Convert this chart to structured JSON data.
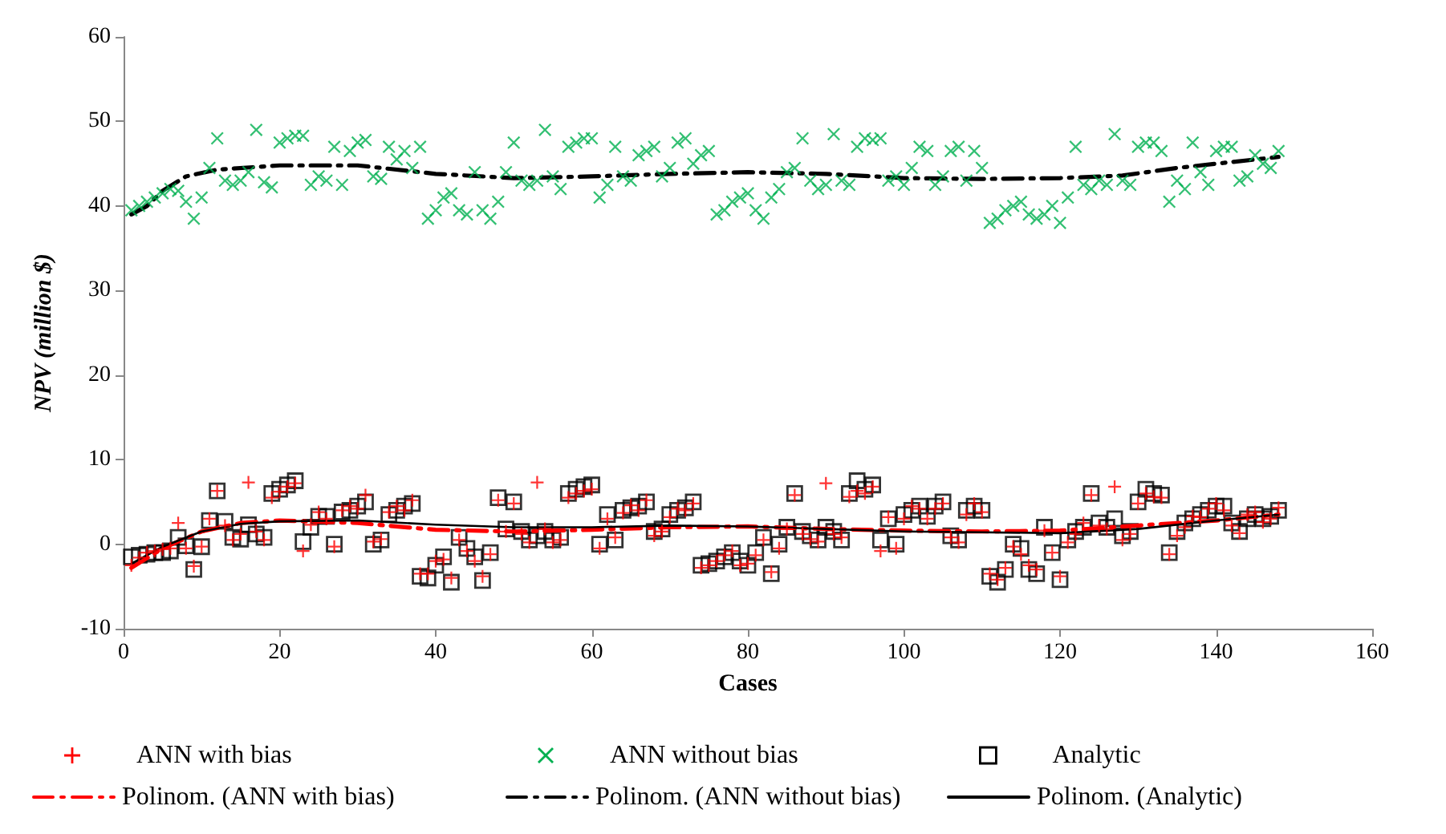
{
  "chart_data": {
    "type": "scatter",
    "xlabel": "Cases",
    "ylabel": "NPV (million $)",
    "xlim": [
      0,
      160
    ],
    "xticks": [
      0,
      20,
      40,
      60,
      80,
      100,
      120,
      140,
      160
    ],
    "ylim": [
      -10,
      60
    ],
    "yticks": [
      -10,
      0,
      10,
      20,
      30,
      40,
      50,
      60
    ],
    "grid": false,
    "legend": "bottom",
    "x": [
      1,
      2,
      3,
      4,
      5,
      6,
      7,
      8,
      9,
      10,
      11,
      12,
      13,
      14,
      15,
      16,
      17,
      18,
      19,
      20,
      21,
      22,
      23,
      24,
      25,
      26,
      27,
      28,
      29,
      30,
      31,
      32,
      33,
      34,
      35,
      36,
      37,
      38,
      39,
      40,
      41,
      42,
      43,
      44,
      45,
      46,
      47,
      48,
      49,
      50,
      51,
      52,
      53,
      54,
      55,
      56,
      57,
      58,
      59,
      60,
      61,
      62,
      63,
      64,
      65,
      66,
      67,
      68,
      69,
      70,
      71,
      72,
      73,
      74,
      75,
      76,
      77,
      78,
      79,
      80,
      81,
      82,
      83,
      84,
      85,
      86,
      87,
      88,
      89,
      90,
      91,
      92,
      93,
      94,
      95,
      96,
      97,
      98,
      99,
      100,
      101,
      102,
      103,
      104,
      105,
      106,
      107,
      108,
      109,
      110,
      111,
      112,
      113,
      114,
      115,
      116,
      117,
      118,
      119,
      120,
      121,
      122,
      123,
      124,
      125,
      126,
      127,
      128,
      129,
      130,
      131,
      132,
      133,
      134,
      135,
      136,
      137,
      138,
      139,
      140,
      141,
      142,
      143,
      144,
      145,
      146,
      147,
      148
    ],
    "series": [
      {
        "name": "ANN with bias",
        "marker": "cross",
        "color": "#ff0000",
        "values": [
          -2.5,
          -1.6,
          -1.0,
          -0.8,
          -0.6,
          -0.5,
          2.5,
          -0.5,
          -2.6,
          -0.3,
          3.0,
          6.3,
          2.2,
          0.5,
          1.2,
          7.3,
          1.5,
          0.5,
          5.5,
          6.2,
          6.8,
          7.2,
          -0.8,
          2.3,
          3.8,
          3.0,
          -0.3,
          4.0,
          4.5,
          4.2,
          5.8,
          0.3,
          0.6,
          3.8,
          4.5,
          4.0,
          5.2,
          -3.5,
          -3.5,
          -2.0,
          -1.8,
          -4.0,
          0.5,
          -0.8,
          -2.0,
          -3.8,
          -1.2,
          5.2,
          1.5,
          4.8,
          1.2,
          0.2,
          7.3,
          1.8,
          0.2,
          0.5,
          5.5,
          6.0,
          6.3,
          6.5,
          -0.5,
          3.0,
          0.8,
          3.7,
          4.6,
          4.0,
          5.2,
          1.0,
          1.5,
          3.2,
          4.2,
          4.0,
          4.8,
          -2.8,
          -2.5,
          -2.0,
          -1.3,
          -0.8,
          -2.5,
          -2.3,
          -1.3,
          0.5,
          -3.3,
          -0.5,
          1.8,
          5.8,
          1.2,
          0.6,
          0.3,
          7.2,
          1.2,
          0.8,
          5.6,
          6.3,
          6.0,
          6.8,
          -0.8,
          3.2,
          -0.5,
          3.0,
          4.5,
          4.2,
          3.0,
          4.2,
          4.8,
          0.8,
          0.2,
          3.5,
          4.8,
          3.8,
          -3.5,
          -4.2,
          -2.8,
          -0.3,
          -1.2,
          -2.5,
          -3.0,
          1.6,
          -1.0,
          -3.8,
          0.2,
          1.2,
          2.5,
          5.8,
          2.2,
          1.8,
          6.8,
          0.5,
          1.2,
          4.8,
          6.0,
          5.6,
          5.5,
          -1.2,
          1.0,
          2.0,
          3.3,
          3.2,
          4.2,
          4.8,
          4.0,
          2.2,
          1.3,
          3.5,
          3.8,
          2.6,
          3.0,
          4.3
        ]
      },
      {
        "name": "ANN without bias",
        "marker": "cross",
        "color": "#00b050",
        "values": [
          39.5,
          40,
          40.5,
          41,
          41.5,
          42,
          41.8,
          40.5,
          38.5,
          41,
          44.5,
          48,
          43,
          42.5,
          43,
          44,
          49,
          42.8,
          42.2,
          47.5,
          48,
          48.3,
          48.3,
          42.5,
          43.5,
          43,
          47,
          42.5,
          46.5,
          47.5,
          47.8,
          43.5,
          43.2,
          47,
          45.5,
          46.5,
          44.5,
          47,
          38.5,
          39.5,
          41,
          41.5,
          39.5,
          39,
          44,
          39.5,
          38.5,
          40.5,
          44,
          47.5,
          43,
          42.5,
          43,
          49,
          43.5,
          42,
          47,
          47.5,
          48,
          48,
          41,
          42.5,
          47,
          43.5,
          43,
          46,
          46.5,
          47,
          43.5,
          44.5,
          47.5,
          48,
          45,
          46,
          46.5,
          39,
          39.5,
          40.5,
          41,
          41.5,
          39.5,
          38.5,
          41,
          42,
          44,
          44.5,
          48,
          43,
          42,
          42.5,
          48.5,
          43,
          42.5,
          47,
          48,
          47.8,
          48,
          43,
          43.5,
          42.5,
          44.5,
          47,
          46.5,
          42.5,
          43.5,
          46.5,
          47,
          43,
          46.5,
          44.5,
          38,
          38.5,
          39.5,
          40,
          40.5,
          39,
          38.5,
          39,
          40,
          38,
          41,
          47,
          42.5,
          42,
          43,
          42.5,
          48.5,
          43,
          42.5,
          47,
          47.5,
          47.5,
          46.5,
          40.5,
          43,
          42,
          47.5,
          44,
          42.5,
          46.5,
          47,
          47,
          43,
          43.5,
          46,
          45,
          44.5,
          46.5
        ]
      },
      {
        "name": "Analytic",
        "marker": "square",
        "color": "#000000",
        "values": [
          -1.5,
          -1.3,
          -1.2,
          -1.0,
          -1.0,
          -0.8,
          0.8,
          -0.2,
          -3.0,
          -0.3,
          2.8,
          6.3,
          2.7,
          0.8,
          0.6,
          2.3,
          1.2,
          0.8,
          6.0,
          6.5,
          7.0,
          7.5,
          0.3,
          2.0,
          3.3,
          3.3,
          0.0,
          3.8,
          4.0,
          4.5,
          5.0,
          0.0,
          0.5,
          3.5,
          4.0,
          4.5,
          4.8,
          -3.8,
          -4.0,
          -2.5,
          -1.5,
          -4.5,
          0.8,
          -0.5,
          -1.5,
          -4.3,
          -1.0,
          5.5,
          1.8,
          5.0,
          1.5,
          0.5,
          1.0,
          1.5,
          0.5,
          0.8,
          6.0,
          6.5,
          6.8,
          7.0,
          0.0,
          3.5,
          0.5,
          4.0,
          4.3,
          4.5,
          5.0,
          1.5,
          1.8,
          3.5,
          4.0,
          4.3,
          5.0,
          -2.5,
          -2.3,
          -2.0,
          -1.5,
          -1.0,
          -2.0,
          -2.5,
          -1.0,
          0.8,
          -3.5,
          0.0,
          2.0,
          6.0,
          1.5,
          1.0,
          0.5,
          2.0,
          1.5,
          0.5,
          6.0,
          7.5,
          6.5,
          7.0,
          0.5,
          3.0,
          0.0,
          3.5,
          4.0,
          4.5,
          3.3,
          4.5,
          5.0,
          1.0,
          0.5,
          4.0,
          4.5,
          4.0,
          -3.8,
          -4.5,
          -3.0,
          0.0,
          -0.5,
          -3.0,
          -3.5,
          2.0,
          -1.0,
          -4.2,
          0.5,
          1.5,
          2.0,
          6.0,
          2.5,
          2.0,
          3.0,
          1.0,
          1.5,
          5.0,
          6.5,
          6.0,
          5.8,
          -1.0,
          1.5,
          2.5,
          3.0,
          3.5,
          4.0,
          4.5,
          4.5,
          2.5,
          1.5,
          3.0,
          3.5,
          3.0,
          3.3,
          4.0
        ]
      },
      {
        "name": "Polinom. (ANN with bias)",
        "type": "line",
        "line_style": "dashed",
        "color": "#ff0000",
        "x": [
          1,
          5,
          10,
          15,
          20,
          30,
          40,
          50,
          60,
          70,
          80,
          90,
          100,
          110,
          120,
          130,
          140,
          148
        ],
        "values": [
          -2.8,
          -0.5,
          1.5,
          2.5,
          2.8,
          2.5,
          1.7,
          1.5,
          1.7,
          2.0,
          2.1,
          1.8,
          1.6,
          1.5,
          1.6,
          2.2,
          2.8,
          3.5
        ]
      },
      {
        "name": "Polinom. (ANN without bias)",
        "type": "line",
        "line_style": "dashed",
        "color": "#000000",
        "x": [
          1,
          3,
          5,
          8,
          12,
          20,
          30,
          40,
          50,
          60,
          70,
          80,
          90,
          100,
          110,
          120,
          128,
          135,
          142,
          148
        ],
        "values": [
          39,
          40,
          41.8,
          43.5,
          44.3,
          44.8,
          44.8,
          43.8,
          43.3,
          43.5,
          43.8,
          44,
          43.8,
          43.3,
          43.2,
          43.3,
          43.6,
          44.5,
          45.2,
          45.8
        ]
      },
      {
        "name": "Polinom. (Analytic)",
        "type": "line",
        "line_style": "solid",
        "color": "#000000",
        "x": [
          1,
          5,
          10,
          15,
          20,
          30,
          40,
          50,
          60,
          70,
          80,
          90,
          100,
          110,
          120,
          130,
          140,
          148
        ],
        "values": [
          -2.3,
          -0.3,
          1.5,
          2.4,
          2.7,
          2.8,
          2.3,
          2.0,
          2.0,
          2.2,
          2.1,
          1.8,
          1.5,
          1.4,
          1.3,
          1.8,
          2.8,
          3.5
        ]
      }
    ]
  }
}
